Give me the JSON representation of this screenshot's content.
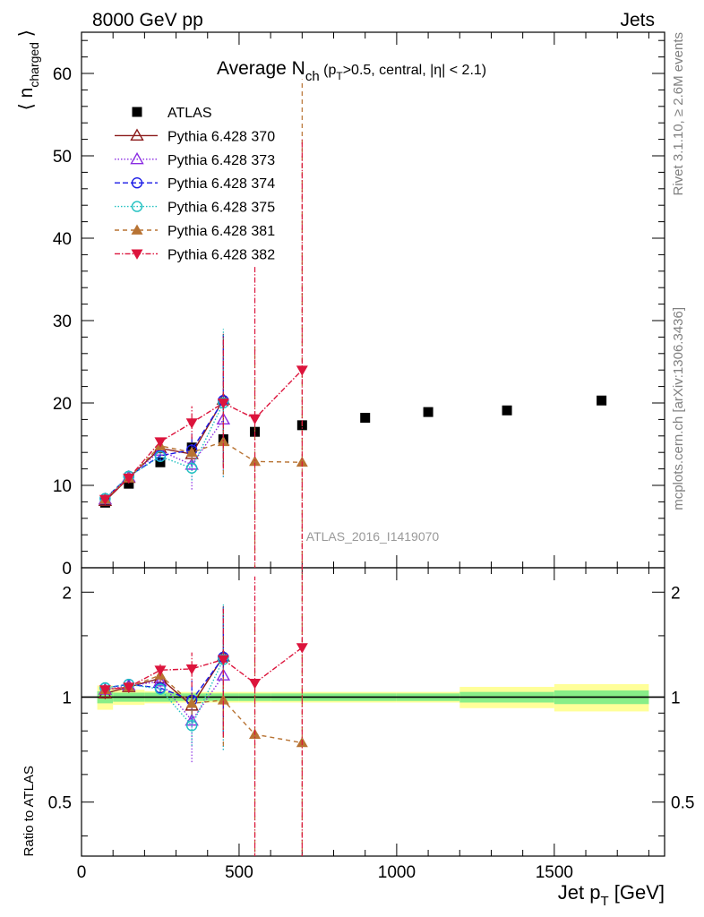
{
  "header": {
    "energy_label": "8000 GeV pp",
    "process_label": "Jets",
    "rivet_label": "Rivet 3.1.10, ≥ 2.6M events",
    "mcplots_label": "mcplots.cern.ch [arXiv:1306.3436]",
    "analysis_id": "ATLAS_2016_I1419070"
  },
  "chart_data": {
    "type": "scatter",
    "title_main": "Average N",
    "title_sub": "ch",
    "title_tail": " (p",
    "title_tail_sub": "T",
    "title_cut": ">0.5, central, |η| < 2.1)",
    "ylabel_main": "⟨ n",
    "ylabel_sub": "charged",
    "ylabel_close": " ⟩",
    "ratio_ylabel": "Ratio to ATLAS",
    "xlabel_main": "Jet p",
    "xlabel_sub": "T",
    "xlabel_unit": " [GeV]",
    "xlim": [
      0,
      1850
    ],
    "ylim": [
      0,
      65
    ],
    "ratio_ylim": [
      0.35,
      2.35
    ],
    "ratio_log": true,
    "x_ticks": [
      0,
      500,
      1000,
      1500
    ],
    "x_tick_labels": [
      "0",
      "500",
      "1000",
      "1500"
    ],
    "y_ticks": [
      0,
      10,
      20,
      30,
      40,
      50,
      60
    ],
    "y_tick_labels": [
      "0",
      "10",
      "20",
      "30",
      "40",
      "50",
      "60"
    ],
    "ratio_ticks": [
      0.5,
      1,
      2
    ],
    "ratio_tick_labels": [
      "0.5",
      "1",
      "2"
    ],
    "bins": [
      [
        50,
        100
      ],
      [
        100,
        200
      ],
      [
        200,
        300
      ],
      [
        300,
        400
      ],
      [
        400,
        500
      ],
      [
        500,
        600
      ],
      [
        600,
        800
      ],
      [
        800,
        1000
      ],
      [
        1000,
        1200
      ],
      [
        1200,
        1500
      ],
      [
        1500,
        1800
      ]
    ],
    "data": {
      "name": "ATLAS",
      "x": [
        75,
        150,
        250,
        350,
        450,
        550,
        700,
        900,
        1100,
        1350,
        1650
      ],
      "y": [
        7.9,
        10.2,
        12.8,
        14.6,
        15.6,
        16.5,
        17.3,
        18.2,
        18.9,
        19.1,
        20.3
      ],
      "band_inner": [
        0.04,
        0.03,
        0.03,
        0.025,
        0.025,
        0.025,
        0.025,
        0.025,
        0.025,
        0.035,
        0.045
      ],
      "band_outer": [
        0.08,
        0.05,
        0.04,
        0.035,
        0.035,
        0.035,
        0.035,
        0.035,
        0.035,
        0.07,
        0.09
      ]
    },
    "series": [
      {
        "name": "Pythia 6.428 370",
        "color": "#8b1a1a",
        "dash": "",
        "marker": "triangle-open",
        "x": [
          75,
          150,
          250,
          350,
          450
        ],
        "y": [
          8.1,
          10.9,
          14.5,
          13.8,
          20.4
        ],
        "err": [
          0.3,
          0.4,
          0.6,
          1.2,
          8.0
        ]
      },
      {
        "name": "Pythia 6.428 373",
        "color": "#8a2be2",
        "dash": "1.5,2",
        "marker": "triangle-open",
        "x": [
          75,
          150,
          250,
          350,
          450
        ],
        "y": [
          8.3,
          11.0,
          14.2,
          12.5,
          18.0
        ],
        "err": [
          0.3,
          0.4,
          0.8,
          3.0,
          7.0
        ]
      },
      {
        "name": "Pythia 6.428 374",
        "color": "#1a1ae6",
        "dash": "6,3",
        "marker": "circle-open",
        "x": [
          75,
          150,
          250,
          350,
          450
        ],
        "y": [
          8.4,
          11.1,
          13.6,
          14.3,
          20.3
        ],
        "err": [
          0.3,
          0.4,
          0.5,
          2.0,
          8.0
        ]
      },
      {
        "name": "Pythia 6.428 375",
        "color": "#20c0c0",
        "dash": "1.5,2",
        "marker": "circle-open",
        "x": [
          75,
          150,
          250,
          350,
          450
        ],
        "y": [
          8.4,
          11.1,
          13.5,
          12.1,
          20.0
        ],
        "err": [
          0.3,
          0.4,
          0.5,
          1.5,
          9.0
        ]
      },
      {
        "name": "Pythia 6.428 381",
        "color": "#b87333",
        "dash": "5,4",
        "marker": "triangle-filled",
        "x": [
          75,
          150,
          250,
          350,
          450,
          550,
          700
        ],
        "y": [
          8.3,
          10.9,
          14.8,
          14.0,
          15.3,
          12.9,
          12.8
        ],
        "err": [
          0.3,
          0.3,
          0.5,
          1.0,
          4.0,
          14.0,
          46.5
        ]
      },
      {
        "name": "Pythia 6.428 382",
        "color": "#dc143c",
        "dash": "6,2,1.5,2",
        "marker": "triangle-down-filled",
        "x": [
          75,
          150,
          250,
          350,
          450,
          550,
          700
        ],
        "y": [
          8.3,
          10.9,
          15.3,
          17.6,
          20.0,
          18.1,
          24.0
        ],
        "err": [
          0.3,
          0.3,
          0.6,
          2.0,
          8.0,
          18.5,
          28.0
        ]
      }
    ]
  }
}
